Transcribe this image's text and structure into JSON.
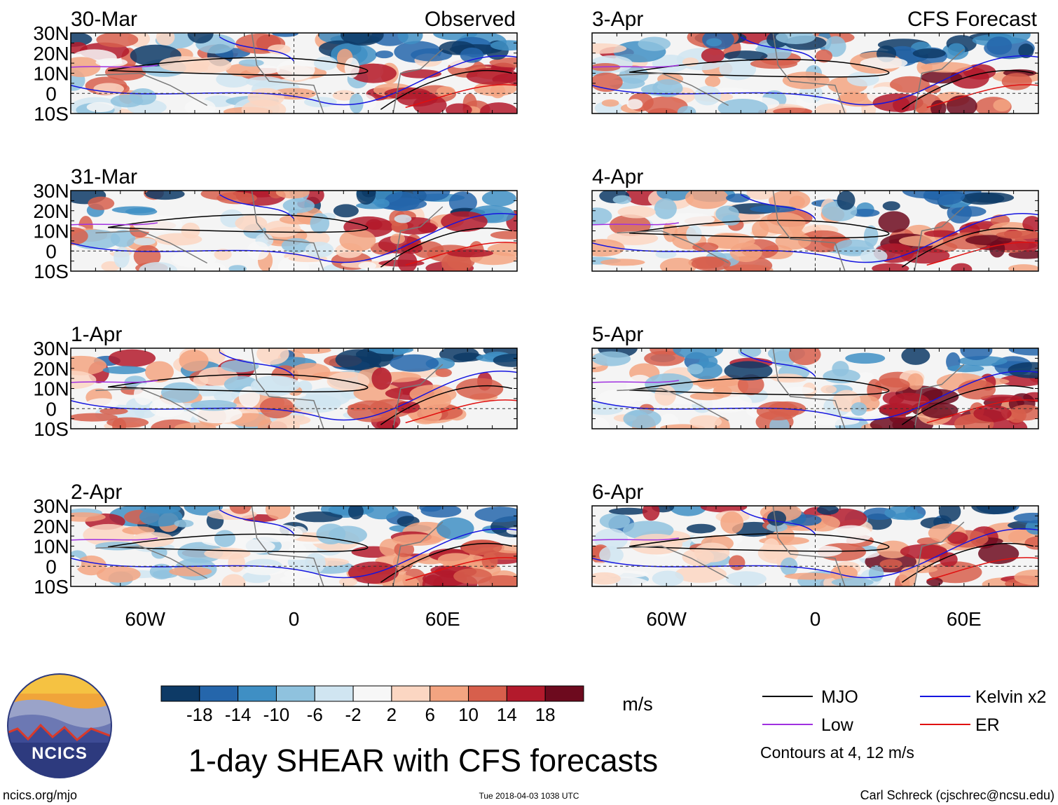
{
  "chart_data": {
    "type": "heatmap",
    "title": "1-day SHEAR with CFS forecasts",
    "unit_label": "m/s",
    "column_titles": {
      "left": "Observed",
      "right": "CFS Forecast"
    },
    "lat_ticks": [
      "30N",
      "20N",
      "10N",
      "0",
      "10S"
    ],
    "lat_values": [
      30,
      20,
      10,
      0,
      -10
    ],
    "lon_ticks": [
      "60W",
      "0",
      "60E"
    ],
    "lon_values": [
      -60,
      0,
      60
    ],
    "lon_range": [
      -90,
      90
    ],
    "lat_range": [
      -10,
      30
    ],
    "panels": [
      {
        "date": "30-Mar",
        "source": "Observed"
      },
      {
        "date": "31-Mar",
        "source": "Observed"
      },
      {
        "date": "1-Apr",
        "source": "Observed"
      },
      {
        "date": "2-Apr",
        "source": "Observed"
      },
      {
        "date": "3-Apr",
        "source": "CFS Forecast"
      },
      {
        "date": "4-Apr",
        "source": "CFS Forecast"
      },
      {
        "date": "5-Apr",
        "source": "CFS Forecast"
      },
      {
        "date": "6-Apr",
        "source": "CFS Forecast"
      }
    ],
    "colorbar": {
      "labels": [
        "-18",
        "-14",
        "-10",
        "-6",
        "-2",
        "2",
        "6",
        "10",
        "14",
        "18"
      ],
      "colors": [
        "#0d3a66",
        "#2566ab",
        "#3f8fc4",
        "#8fc2de",
        "#d0e5f1",
        "#f7f7f7",
        "#fbd6c2",
        "#f3a481",
        "#d75f4c",
        "#b31a2c",
        "#6d0a1e"
      ]
    },
    "legend": [
      {
        "label": "MJO",
        "color": "#000000"
      },
      {
        "label": "Kelvin x2",
        "color": "#1515e0"
      },
      {
        "label": "Low",
        "color": "#a030e0"
      },
      {
        "label": "ER",
        "color": "#e01010"
      }
    ],
    "contour_note": "Contours at 4, 12 m/s"
  },
  "footer": {
    "site": "ncics.org/mjo",
    "timestamp": "Tue 2018-04-03 1038 UTC",
    "credit": "Carl Schreck (cjschrec@ncsu.edu)",
    "logo_text": "NCICS"
  }
}
